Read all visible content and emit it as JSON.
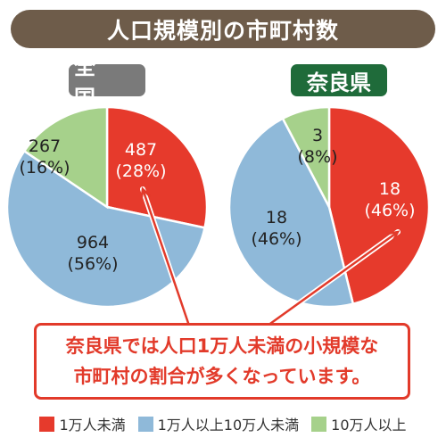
{
  "title": "人口規模別の市町村数",
  "callout": {
    "line1": "奈良県では人口1万人未満の小規模な",
    "line2": "市町村の割合が多くなっています。"
  },
  "legend": [
    {
      "label": "1万人未満",
      "color": "#e63a2c"
    },
    {
      "label": "1万人以上10万人未満",
      "color": "#8fb9d9"
    },
    {
      "label": "10万人以上",
      "color": "#a6d18b"
    }
  ],
  "chart_data": [
    {
      "type": "pie",
      "title": "全 国",
      "categories": [
        "1万人未満",
        "1万人以上10万人未満",
        "10万人以上"
      ],
      "values": [
        487,
        964,
        267
      ],
      "percent_labels": [
        "(28%)",
        "(56%)",
        "(16%)"
      ],
      "colors": [
        "#e63a2c",
        "#8fb9d9",
        "#a6d18b"
      ]
    },
    {
      "type": "pie",
      "title": "奈良県",
      "categories": [
        "1万人未満",
        "1万人以上10万人未満",
        "10万人以上"
      ],
      "values": [
        18,
        18,
        3
      ],
      "percent_labels": [
        "(46%)",
        "(46%)",
        "(8%)"
      ],
      "colors": [
        "#e63a2c",
        "#8fb9d9",
        "#a6d18b"
      ]
    }
  ]
}
